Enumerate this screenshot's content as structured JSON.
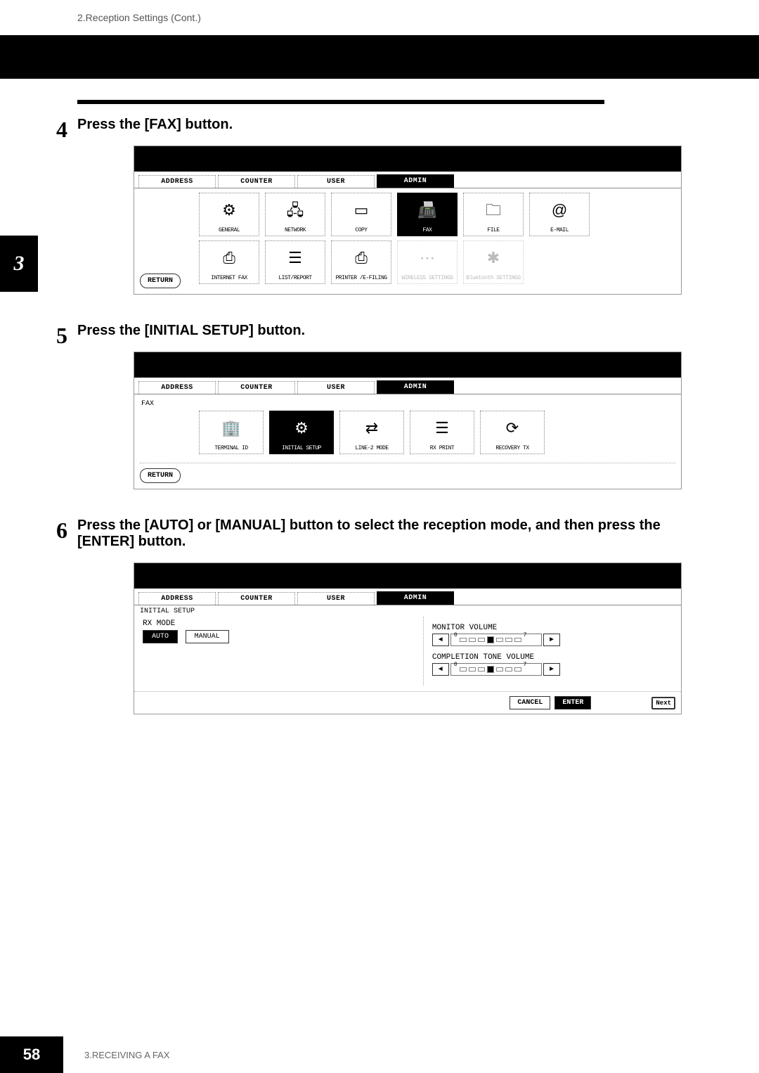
{
  "header_text": "2.Reception Settings (Cont.)",
  "side_tab_num": "3",
  "steps": {
    "s4": {
      "num": "4",
      "title": "Press the [FAX] button."
    },
    "s5": {
      "num": "5",
      "title": "Press the [INITIAL SETUP] button."
    },
    "s6": {
      "num": "6",
      "title": "Press the [AUTO] or [MANUAL] button to select the reception mode, and then press the [ENTER] button."
    }
  },
  "tabs": {
    "address": "ADDRESS",
    "counter": "COUNTER",
    "user": "USER",
    "admin": "ADMIN"
  },
  "panel4": {
    "row1": [
      {
        "label": "GENERAL",
        "glyph": "⚙",
        "sel": false
      },
      {
        "label": "NETWORK",
        "glyph": "🖧",
        "sel": false
      },
      {
        "label": "COPY",
        "glyph": "▭",
        "sel": false
      },
      {
        "label": "FAX",
        "glyph": "📠",
        "sel": true
      },
      {
        "label": "FILE",
        "glyph": "🗀",
        "sel": false
      },
      {
        "label": "E-MAIL",
        "glyph": "@",
        "sel": false
      }
    ],
    "row2": [
      {
        "label": "INTERNET FAX",
        "glyph": "⎙",
        "sel": false,
        "dim": false
      },
      {
        "label": "LIST/REPORT",
        "glyph": "☰",
        "sel": false,
        "dim": false
      },
      {
        "label": "PRINTER /E-FILING",
        "glyph": "⎙",
        "sel": false,
        "dim": false
      },
      {
        "label": "WIRELESS SETTINGS",
        "glyph": "⋯",
        "sel": false,
        "dim": true
      },
      {
        "label": "Bluetooth SETTINGS",
        "glyph": "✱",
        "sel": false,
        "dim": true
      }
    ],
    "return": "RETURN"
  },
  "panel5": {
    "crumb": "FAX",
    "items": [
      {
        "label": "TERMINAL ID",
        "glyph": "🏢",
        "sel": false
      },
      {
        "label": "INITIAL SETUP",
        "glyph": "⚙",
        "sel": true
      },
      {
        "label": "LINE-2 MODE",
        "glyph": "⇄",
        "sel": false
      },
      {
        "label": "RX PRINT",
        "glyph": "☰",
        "sel": false
      },
      {
        "label": "RECOVERY TX",
        "glyph": "⟳",
        "sel": false
      }
    ],
    "return": "RETURN"
  },
  "panel6": {
    "crumb": "INITIAL SETUP",
    "rx_mode_label": "RX MODE",
    "auto": "AUTO",
    "manual": "MANUAL",
    "monitor_volume": "MONITOR VOLUME",
    "completion_tone": "COMPLETION TONE VOLUME",
    "vol_min": "0",
    "vol_max": "7",
    "cancel": "CANCEL",
    "enter": "ENTER",
    "next": "Next"
  },
  "footer": {
    "page": "58",
    "chapter": "3.RECEIVING A FAX"
  }
}
